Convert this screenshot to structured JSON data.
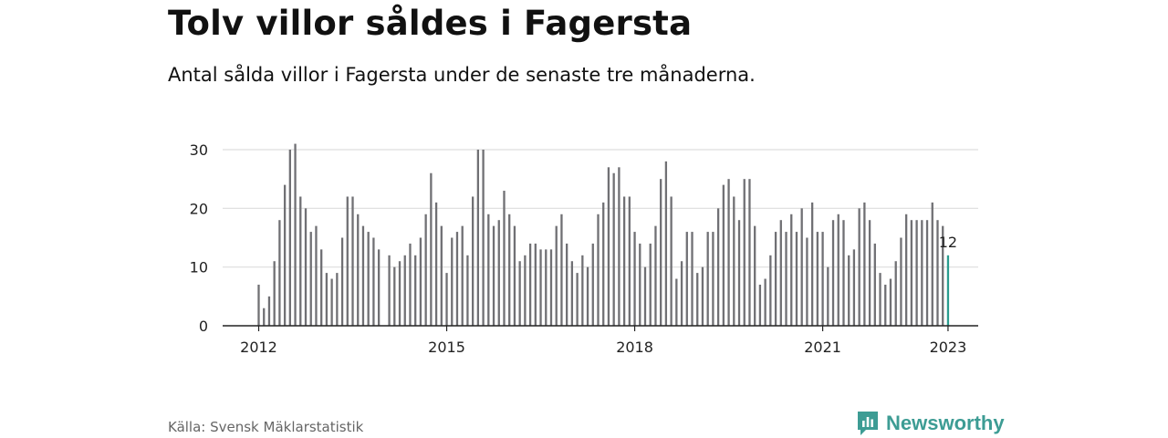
{
  "header": {
    "title": "Tolv villor såldes i Fagersta",
    "subtitle": "Antal sålda villor i Fagersta under de senaste tre månaderna."
  },
  "footer": {
    "source": "Källa: Svensk Mäklarstatistik",
    "brand": "Newsworthy",
    "brand_icon": "newsworthy-chart-icon"
  },
  "colors": {
    "bar": "#707074",
    "highlight": "#2a9d8f",
    "grid": "#dddddd",
    "axis": "#222222",
    "brand": "#3d9c94"
  },
  "chart_data": {
    "type": "bar",
    "start": "2012-01",
    "frequency": "monthly",
    "values": [
      7,
      3,
      5,
      11,
      18,
      24,
      30,
      31,
      22,
      20,
      16,
      17,
      13,
      9,
      8,
      9,
      15,
      22,
      22,
      19,
      17,
      16,
      15,
      13,
      null,
      12,
      10,
      11,
      12,
      14,
      12,
      15,
      19,
      26,
      21,
      17,
      9,
      15,
      16,
      17,
      12,
      22,
      30,
      30,
      19,
      17,
      18,
      23,
      19,
      17,
      11,
      12,
      14,
      14,
      13,
      13,
      13,
      17,
      19,
      14,
      11,
      9,
      12,
      10,
      14,
      19,
      21,
      27,
      26,
      27,
      22,
      22,
      16,
      14,
      10,
      14,
      17,
      25,
      28,
      22,
      8,
      11,
      16,
      16,
      9,
      10,
      16,
      16,
      20,
      24,
      25,
      22,
      18,
      25,
      25,
      17,
      7,
      8,
      12,
      16,
      18,
      16,
      19,
      16,
      20,
      15,
      21,
      16,
      16,
      10,
      18,
      19,
      18,
      12,
      13,
      20,
      21,
      18,
      14,
      9,
      7,
      8,
      11,
      15,
      19,
      18,
      18,
      18,
      18,
      21,
      18,
      17,
      12
    ],
    "highlight_label": "12",
    "yticks": [
      0,
      10,
      20,
      30
    ],
    "ylim": [
      0,
      32
    ],
    "xticks": [
      "2012",
      "2015",
      "2018",
      "2021",
      "2023"
    ],
    "grid": true,
    "xlabel": "",
    "ylabel": ""
  }
}
